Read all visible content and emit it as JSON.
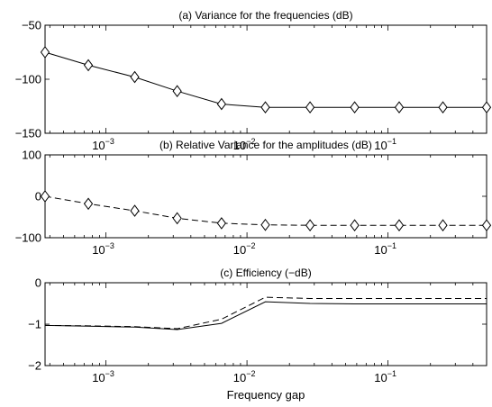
{
  "figure": {
    "xlabel": "Frequency gap"
  },
  "chart_data": [
    {
      "type": "line",
      "title": "(a) Variance for the frequencies (dB)",
      "xscale": "log",
      "xlim": [
        0.00037,
        0.5
      ],
      "ylim": [
        -150,
        -50
      ],
      "yticks": [
        -150,
        -100,
        -50
      ],
      "ytick_labels": [
        "−150",
        "−100",
        "−50"
      ],
      "xtick_labels": [
        {
          "value": 0.001,
          "base": "10",
          "exp": "−3"
        },
        {
          "value": 0.01,
          "base": "10",
          "exp": "−2"
        },
        {
          "value": 0.1,
          "base": "10",
          "exp": "−1"
        }
      ],
      "x": [
        0.00037,
        0.00075,
        0.0016,
        0.0032,
        0.0066,
        0.0135,
        0.028,
        0.058,
        0.12,
        0.245,
        0.5
      ],
      "series": [
        {
          "style": "solid",
          "marker": "diamond",
          "values": [
            -75,
            -87,
            -98,
            -111,
            -123,
            -126,
            -126,
            -126,
            -126,
            -126,
            -126
          ]
        }
      ]
    },
    {
      "type": "line",
      "title": "(b) Relative Variance for the amplitudes (dB)",
      "xscale": "log",
      "xlim": [
        0.00037,
        0.5
      ],
      "ylim": [
        -100,
        100
      ],
      "yticks": [
        -100,
        0,
        100
      ],
      "ytick_labels": [
        "−100",
        "0",
        "100"
      ],
      "xtick_labels": [
        {
          "value": 0.001,
          "base": "10",
          "exp": "−3"
        },
        {
          "value": 0.01,
          "base": "10",
          "exp": "−2"
        },
        {
          "value": 0.1,
          "base": "10",
          "exp": "−1"
        }
      ],
      "x": [
        0.00037,
        0.00075,
        0.0016,
        0.0032,
        0.0066,
        0.0135,
        0.028,
        0.058,
        0.12,
        0.245,
        0.5
      ],
      "series": [
        {
          "style": "dashed",
          "marker": "diamond",
          "values": [
            0,
            -18,
            -35,
            -53,
            -65,
            -69,
            -70,
            -70,
            -70,
            -70,
            -70
          ]
        }
      ]
    },
    {
      "type": "line",
      "title": "(c) Efficiency (−dB)",
      "xscale": "log",
      "xlim": [
        0.00037,
        0.5
      ],
      "ylim": [
        -2,
        0
      ],
      "yticks": [
        -2,
        -1,
        0
      ],
      "ytick_labels": [
        "−2",
        "−1",
        "0"
      ],
      "xtick_labels": [
        {
          "value": 0.001,
          "base": "10",
          "exp": "−3"
        },
        {
          "value": 0.01,
          "base": "10",
          "exp": "−2"
        },
        {
          "value": 0.1,
          "base": "10",
          "exp": "−1"
        }
      ],
      "x": [
        0.00037,
        0.00075,
        0.0016,
        0.0032,
        0.0066,
        0.0135,
        0.028,
        0.058,
        0.12,
        0.245,
        0.5
      ],
      "series": [
        {
          "style": "solid",
          "marker": "none",
          "values": [
            -1.03,
            -1.05,
            -1.07,
            -1.13,
            -0.98,
            -0.46,
            -0.5,
            -0.51,
            -0.51,
            -0.51,
            -0.51
          ]
        },
        {
          "style": "dashed",
          "marker": "none",
          "values": [
            -1.03,
            -1.04,
            -1.06,
            -1.11,
            -0.88,
            -0.35,
            -0.38,
            -0.38,
            -0.38,
            -0.38,
            -0.38
          ]
        }
      ]
    }
  ]
}
